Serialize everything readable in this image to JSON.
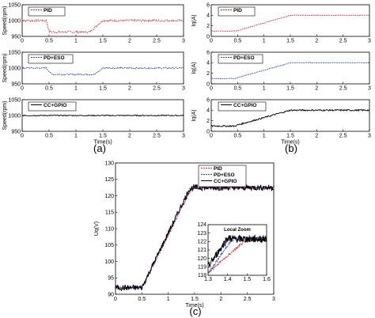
{
  "colors": {
    "pid": "#d62728",
    "pdeso": "#1f3fbf",
    "ccgpio": "#000000",
    "frame": "#000000",
    "zoombox": "#000000"
  },
  "chart_data": [
    {
      "type": "line",
      "panel": "(a)",
      "subplots": [
        {
          "legend": [
            "PID"
          ],
          "ylabel": "Speed(rpm)",
          "xlim": [
            0,
            3
          ],
          "ylim": [
            950,
            1050
          ],
          "yticks": [
            950,
            1000,
            1050
          ],
          "xticks": [
            0,
            0.5,
            1,
            1.5,
            2,
            2.5,
            3
          ],
          "series": [
            {
              "name": "PID",
              "color_key": "pid",
              "dashed": true,
              "x": [
                0,
                0.45,
                0.5,
                0.55,
                1.25,
                1.5,
                3
              ],
              "y": [
                1000,
                1000,
                966,
                964,
                964,
                1000,
                1000
              ]
            }
          ]
        },
        {
          "legend": [
            "PD+ESO"
          ],
          "ylabel": "Speed(rpm)",
          "xlim": [
            0,
            3
          ],
          "ylim": [
            950,
            1050
          ],
          "yticks": [
            950,
            1000,
            1050
          ],
          "xticks": [
            0,
            0.5,
            1,
            1.5,
            2,
            2.5,
            3
          ],
          "series": [
            {
              "name": "PD+ESO",
              "color_key": "pdeso",
              "dashed": true,
              "x": [
                0,
                0.45,
                0.55,
                0.6,
                1.35,
                1.5,
                3
              ],
              "y": [
                1000,
                1000,
                980,
                980,
                980,
                1000,
                1000
              ]
            }
          ]
        },
        {
          "legend": [
            "CC+GPIO"
          ],
          "ylabel": "Speed(rpm)",
          "xlabel": "Time(s)",
          "xlim": [
            0,
            3
          ],
          "ylim": [
            950,
            1050
          ],
          "yticks": [
            950,
            1000,
            1050
          ],
          "xticks": [
            0,
            0.5,
            1,
            1.5,
            2,
            2.5,
            3
          ],
          "series": [
            {
              "name": "CC+GPIO",
              "color_key": "ccgpio",
              "dashed": false,
              "x": [
                0,
                3
              ],
              "y": [
                1000,
                1000
              ]
            }
          ]
        }
      ]
    },
    {
      "type": "line",
      "panel": "(b)",
      "subplots": [
        {
          "legend": [
            "PID"
          ],
          "ylabel": "Iq(A)",
          "xlim": [
            0,
            3
          ],
          "ylim": [
            0,
            6
          ],
          "yticks": [
            0,
            2,
            4,
            6
          ],
          "xticks": [
            0,
            0.5,
            1,
            1.5,
            2,
            2.5,
            3
          ],
          "series": [
            {
              "name": "PID",
              "color_key": "pid",
              "dashed": true,
              "x": [
                0,
                0.45,
                0.5,
                1.5,
                3
              ],
              "y": [
                1.0,
                1.0,
                1.1,
                4.0,
                4.0
              ]
            }
          ]
        },
        {
          "legend": [
            "PD+ESO"
          ],
          "ylabel": "Iq(A)",
          "xlim": [
            0,
            3
          ],
          "ylim": [
            0,
            6
          ],
          "yticks": [
            0,
            2,
            4,
            6
          ],
          "xticks": [
            0,
            0.5,
            1,
            1.5,
            2,
            2.5,
            3
          ],
          "series": [
            {
              "name": "PD+ESO",
              "color_key": "pdeso",
              "dashed": true,
              "x": [
                0,
                0.45,
                0.5,
                1.5,
                3
              ],
              "y": [
                1.0,
                1.0,
                1.2,
                4.0,
                4.0
              ]
            }
          ]
        },
        {
          "legend": [
            "CC+GPIO"
          ],
          "ylabel": "Iq(A)",
          "xlabel": "Time(s)",
          "xlim": [
            0,
            3
          ],
          "ylim": [
            0,
            6
          ],
          "yticks": [
            0,
            2,
            4,
            6
          ],
          "xticks": [
            0,
            0.5,
            1,
            1.5,
            2,
            2.5,
            3
          ],
          "series": [
            {
              "name": "CC+GPIO",
              "color_key": "ccgpio",
              "dashed": false,
              "x": [
                0,
                0.45,
                0.5,
                1.5,
                3
              ],
              "y": [
                1.0,
                1.0,
                1.2,
                4.0,
                4.0
              ]
            }
          ]
        }
      ]
    },
    {
      "type": "line",
      "panel": "(c)",
      "ylabel": "Uq(V)",
      "xlabel": "Time(s)",
      "xlim": [
        0,
        3
      ],
      "ylim": [
        90,
        130
      ],
      "yticks": [
        90,
        95,
        100,
        105,
        110,
        115,
        120,
        125,
        130
      ],
      "xticks": [
        0,
        0.5,
        1,
        1.5,
        2,
        2.5,
        3
      ],
      "legend": [
        "PID",
        "PD+ESO",
        "CC+GPIO"
      ],
      "series": [
        {
          "name": "PID",
          "color_key": "pid",
          "dashed": true,
          "x": [
            0,
            0.5,
            1.45,
            1.55,
            3
          ],
          "y": [
            92,
            92,
            122.5,
            122.5,
            122.5
          ]
        },
        {
          "name": "PD+ESO",
          "color_key": "pdeso",
          "dashed": true,
          "x": [
            0,
            0.5,
            1.42,
            1.5,
            3
          ],
          "y": [
            92,
            92,
            122.3,
            122.5,
            122.5
          ]
        },
        {
          "name": "CC+GPIO",
          "color_key": "ccgpio",
          "dashed": false,
          "x": [
            0,
            0.5,
            1.4,
            1.5,
            3
          ],
          "y": [
            92,
            92,
            122,
            122.5,
            122.5
          ]
        }
      ],
      "inset": {
        "title": "Local Zoom",
        "xlim": [
          1.3,
          1.6
        ],
        "ylim": [
          118,
          124
        ],
        "xticks": [
          1.3,
          1.4,
          1.5,
          1.6
        ],
        "yticks": [
          118,
          119,
          120,
          121,
          122,
          123,
          124
        ],
        "series": [
          {
            "name": "PID",
            "color_key": "pid",
            "dashed": true,
            "x": [
              1.3,
              1.45,
              1.5,
              1.6
            ],
            "y": [
              118.3,
              121.3,
              122.2,
              122.2
            ]
          },
          {
            "name": "PD+ESO",
            "color_key": "pdeso",
            "dashed": true,
            "x": [
              1.3,
              1.42,
              1.5,
              1.6
            ],
            "y": [
              118.2,
              122.2,
              122.4,
              122.4
            ]
          },
          {
            "name": "CC+GPIO",
            "color_key": "ccgpio",
            "dashed": false,
            "x": [
              1.3,
              1.4,
              1.45,
              1.6
            ],
            "y": [
              119.0,
              122.4,
              122.3,
              122.3
            ]
          }
        ]
      }
    }
  ],
  "captions": {
    "a": "(a)",
    "b": "(b)",
    "c": "(c)"
  }
}
